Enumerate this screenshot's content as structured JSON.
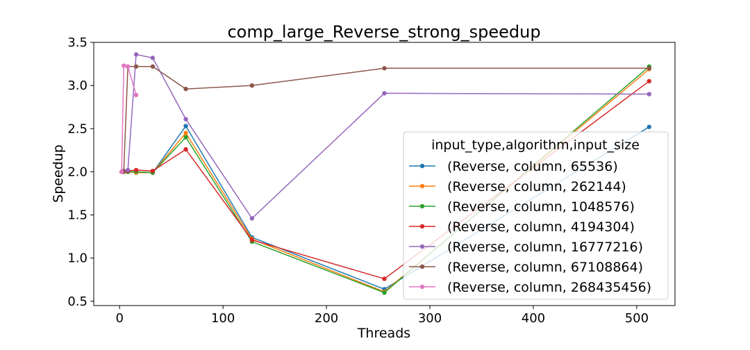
{
  "chart_data": {
    "type": "line",
    "title": "comp_large_Reverse_strong_speedup",
    "xlabel": "Threads",
    "ylabel": "Speedup",
    "xlim": [
      -25,
      537
    ],
    "ylim": [
      0.45,
      3.5
    ],
    "xticks": [
      0,
      100,
      200,
      300,
      400,
      500
    ],
    "yticks": [
      0.5,
      1.0,
      1.5,
      2.0,
      2.5,
      3.0,
      3.5
    ],
    "xtick_labels": [
      "0",
      "100",
      "200",
      "300",
      "400",
      "500"
    ],
    "ytick_labels": [
      "0.5",
      "1.0",
      "1.5",
      "2.0",
      "2.5",
      "3.0",
      "3.5"
    ],
    "grid": false,
    "legend": {
      "title": "input_type,algorithm,input_size",
      "placement": "center-right"
    },
    "series": [
      {
        "name": "(Reverse, column, 65536)",
        "color": "#1f77b4",
        "x": [
          2,
          4,
          8,
          16,
          32,
          64,
          128,
          256,
          512
        ],
        "y": [
          2.0,
          2.0,
          2.0,
          2.0,
          1.99,
          2.53,
          1.24,
          0.64,
          2.52
        ]
      },
      {
        "name": "(Reverse, column, 262144)",
        "color": "#ff7f0e",
        "x": [
          2,
          4,
          8,
          16,
          32,
          64,
          128,
          256,
          512
        ],
        "y": [
          2.0,
          2.0,
          2.0,
          1.99,
          1.99,
          2.45,
          1.22,
          0.61,
          3.19
        ]
      },
      {
        "name": "(Reverse, column, 1048576)",
        "color": "#2ca02c",
        "x": [
          2,
          4,
          8,
          16,
          32,
          64,
          128,
          256,
          512
        ],
        "y": [
          2.0,
          2.0,
          2.0,
          2.0,
          1.99,
          2.4,
          1.19,
          0.6,
          3.22
        ]
      },
      {
        "name": "(Reverse, column, 4194304)",
        "color": "#d62728",
        "x": [
          2,
          4,
          8,
          16,
          32,
          64,
          128,
          256,
          512
        ],
        "y": [
          2.0,
          2.01,
          2.01,
          2.02,
          2.01,
          2.26,
          1.21,
          0.76,
          3.05
        ]
      },
      {
        "name": "(Reverse, column, 16777216)",
        "color": "#9467bd",
        "x": [
          2,
          4,
          8,
          16,
          32,
          64,
          128,
          256,
          512
        ],
        "y": [
          2.0,
          2.01,
          2.02,
          3.36,
          3.32,
          2.61,
          1.46,
          2.91,
          2.9
        ]
      },
      {
        "name": "(Reverse, column, 67108864)",
        "color": "#8c564b",
        "x": [
          2,
          4,
          8,
          16,
          32,
          64,
          128,
          256,
          512
        ],
        "y": [
          2.0,
          2.0,
          3.22,
          3.22,
          3.22,
          2.96,
          3.0,
          3.2,
          3.2
        ]
      },
      {
        "name": "(Reverse, column, 268435456)",
        "color": "#e377c2",
        "x": [
          2,
          4,
          8,
          16
        ],
        "y": [
          2.0,
          3.23,
          3.22,
          2.89
        ]
      }
    ]
  }
}
